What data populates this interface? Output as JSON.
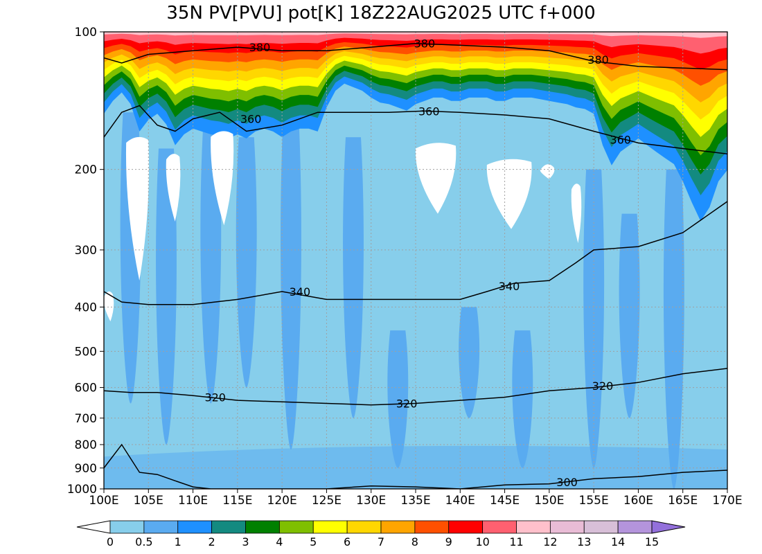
{
  "title": "35N PV[PVU] pot[K] 18Z22AUG2025 UTC f+000",
  "chart_data": {
    "type": "heatmap",
    "title": "35N PV[PVU] pot[K] 18Z22AUG2025 UTC f+000",
    "x_axis": {
      "range": [
        100,
        170
      ],
      "ticks": [
        100,
        105,
        110,
        115,
        120,
        125,
        130,
        135,
        140,
        145,
        150,
        155,
        160,
        165,
        170
      ],
      "tick_labels": [
        "100E",
        "105E",
        "110E",
        "115E",
        "120E",
        "125E",
        "130E",
        "135E",
        "140E",
        "145E",
        "150E",
        "155E",
        "160E",
        "165E",
        "170E"
      ]
    },
    "y_axis": {
      "scale": "log",
      "inverted": true,
      "range": [
        1000,
        100
      ],
      "ticks": [
        100,
        200,
        300,
        400,
        500,
        600,
        700,
        800,
        900,
        1000
      ],
      "tick_labels": [
        "100",
        "200",
        "300",
        "400",
        "500",
        "600",
        "700",
        "800",
        "900",
        "1000"
      ]
    },
    "grid": true,
    "colorbar": {
      "levels": [
        0,
        0.5,
        1,
        2,
        3,
        4,
        5,
        6,
        7,
        8,
        9,
        10,
        11,
        12,
        13,
        14,
        15
      ],
      "level_labels": [
        "0",
        "0.5",
        "1",
        "2",
        "3",
        "4",
        "5",
        "6",
        "7",
        "8",
        "9",
        "10",
        "11",
        "12",
        "13",
        "14",
        "15"
      ],
      "colors": [
        "#ffffff",
        "#87ceeb",
        "#5aabf0",
        "#1e90ff",
        "#138a80",
        "#008000",
        "#7fbf00",
        "#ffff00",
        "#ffd700",
        "#ffa500",
        "#ff5000",
        "#ff0000",
        "#ff6070",
        "#ffc0cb",
        "#e9bcd6",
        "#d8bfd8",
        "#b494dc",
        "#9370db"
      ]
    },
    "pv_field": {
      "lon": [
        100,
        101,
        102,
        103,
        104,
        105,
        106,
        107,
        108,
        109,
        110,
        111,
        112,
        113,
        114,
        115,
        116,
        117,
        118,
        119,
        120,
        121,
        122,
        123,
        124,
        125,
        126,
        127,
        128,
        129,
        130,
        131,
        132,
        133,
        134,
        135,
        136,
        137,
        138,
        139,
        140,
        141,
        142,
        143,
        144,
        145,
        146,
        147,
        148,
        149,
        150,
        151,
        152,
        153,
        154,
        155,
        156,
        157,
        158,
        159,
        160,
        161,
        162,
        163,
        164,
        165,
        166,
        167,
        168,
        169,
        170
      ],
      "tropopause_pressure_hPa": [
        128,
        120,
        115,
        122,
        140,
        132,
        128,
        135,
        150,
        142,
        138,
        140,
        142,
        143,
        145,
        142,
        145,
        140,
        138,
        140,
        144,
        140,
        138,
        138,
        140,
        124,
        114,
        110,
        112,
        114,
        118,
        121,
        122,
        124,
        126,
        122,
        120,
        118,
        118,
        120,
        120,
        118,
        118,
        118,
        120,
        120,
        118,
        118,
        118,
        119,
        120,
        121,
        122,
        124,
        125,
        128,
        150,
        166,
        155,
        150,
        145,
        150,
        155,
        160,
        165,
        180,
        200,
        220,
        205,
        180,
        170
      ],
      "colored_levels": [
        {
          "level": 0.5,
          "label": "0.5"
        },
        {
          "level": 1,
          "label": "1"
        },
        {
          "level": 2,
          "label": "2"
        },
        {
          "level": 3,
          "label": "3"
        },
        {
          "level": 4,
          "label": "4"
        },
        {
          "level": 5,
          "label": "5"
        },
        {
          "level": 6,
          "label": "6"
        },
        {
          "level": 7,
          "label": "7"
        },
        {
          "level": 8,
          "label": "8"
        },
        {
          "level": 9,
          "label": "9"
        },
        {
          "level": 10,
          "label": "10"
        },
        {
          "level": 11,
          "label": "11"
        }
      ],
      "low_pv_areas": [
        {
          "lon_min": 100,
          "lon_max": 101,
          "p_min": 370,
          "p_max": 430,
          "pv": "0"
        },
        {
          "lon_min": 102.5,
          "lon_max": 105,
          "p_min": 170,
          "p_max": 350,
          "pv": "0"
        },
        {
          "lon_min": 107,
          "lon_max": 108.5,
          "p_min": 185,
          "p_max": 260,
          "pv": "0"
        },
        {
          "lon_min": 112,
          "lon_max": 114.5,
          "p_min": 165,
          "p_max": 265,
          "pv": "0"
        },
        {
          "lon_min": 135,
          "lon_max": 139.5,
          "p_min": 175,
          "p_max": 250,
          "pv": "0"
        },
        {
          "lon_min": 143,
          "lon_max": 148,
          "p_min": 190,
          "p_max": 270,
          "pv": "0"
        },
        {
          "lon_min": 149,
          "lon_max": 150.5,
          "p_min": 195,
          "p_max": 210,
          "pv": "0"
        },
        {
          "lon_min": 152.5,
          "lon_max": 153.5,
          "p_min": 215,
          "p_max": 290,
          "pv": "0"
        }
      ],
      "moderate_pv_streaks": [
        {
          "lon": 103,
          "p_top": 150,
          "p_bottom": 650,
          "pv": "0.5"
        },
        {
          "lon": 107,
          "p_top": 180,
          "p_bottom": 800,
          "pv": "0.5"
        },
        {
          "lon": 112,
          "p_top": 160,
          "p_bottom": 650,
          "pv": "0.5"
        },
        {
          "lon": 116,
          "p_top": 170,
          "p_bottom": 600,
          "pv": "0.5"
        },
        {
          "lon": 121,
          "p_top": 150,
          "p_bottom": 820,
          "pv": "0.5"
        },
        {
          "lon": 128,
          "p_top": 170,
          "p_bottom": 700,
          "pv": "0.5"
        },
        {
          "lon": 133,
          "p_top": 450,
          "p_bottom": 900,
          "pv": "0.5"
        },
        {
          "lon": 141,
          "p_top": 400,
          "p_bottom": 700,
          "pv": "0.5"
        },
        {
          "lon": 147,
          "p_top": 450,
          "p_bottom": 900,
          "pv": "0.5"
        },
        {
          "lon": 155,
          "p_top": 200,
          "p_bottom": 900,
          "pv": "0.5"
        },
        {
          "lon": 159,
          "p_top": 250,
          "p_bottom": 700,
          "pv": "0.5"
        },
        {
          "lon": 164,
          "p_top": 200,
          "p_bottom": 1000,
          "pv": "0.5"
        }
      ]
    },
    "theta_contours": [
      {
        "label": "300",
        "lon": [
          100,
          102,
          104,
          106,
          108,
          110,
          112,
          114,
          116,
          118,
          120,
          125,
          130,
          135,
          140,
          145,
          150,
          155,
          160,
          165,
          170
        ],
        "p": [
          900,
          800,
          920,
          930,
          960,
          990,
          1000,
          1000,
          1000,
          1000,
          1000,
          1000,
          985,
          990,
          1000,
          980,
          975,
          950,
          940,
          920,
          910
        ],
        "label_positions": [
          {
            "lon": 152,
            "p": 965
          }
        ]
      },
      {
        "label": "320",
        "lon": [
          100,
          103,
          106,
          110,
          115,
          120,
          125,
          130,
          135,
          140,
          145,
          150,
          155,
          160,
          165,
          170
        ],
        "p": [
          610,
          615,
          615,
          625,
          640,
          645,
          650,
          655,
          650,
          640,
          630,
          610,
          600,
          585,
          560,
          545
        ],
        "label_positions": [
          {
            "lon": 112.5,
            "p": 630
          },
          {
            "lon": 134,
            "p": 650
          },
          {
            "lon": 156,
            "p": 595
          }
        ]
      },
      {
        "label": "340",
        "lon": [
          100,
          102,
          105,
          110,
          115,
          120,
          125,
          130,
          135,
          140,
          143,
          146,
          150,
          153,
          155,
          160,
          165,
          170
        ],
        "p": [
          370,
          390,
          395,
          395,
          385,
          370,
          385,
          385,
          385,
          385,
          370,
          355,
          350,
          320,
          300,
          295,
          275,
          235
        ],
        "label_positions": [
          {
            "lon": 122,
            "p": 370
          },
          {
            "lon": 145.5,
            "p": 360
          }
        ]
      },
      {
        "label": "360",
        "lon": [
          100,
          102,
          104,
          106,
          108,
          110,
          113,
          116,
          120,
          124,
          128,
          132,
          136,
          140,
          145,
          150,
          155,
          160,
          165,
          170
        ],
        "p": [
          170,
          150,
          145,
          160,
          165,
          155,
          150,
          165,
          160,
          150,
          150,
          150,
          149,
          150,
          152,
          155,
          165,
          175,
          180,
          185
        ],
        "label_positions": [
          {
            "lon": 116.5,
            "p": 155
          },
          {
            "lon": 136.5,
            "p": 149
          },
          {
            "lon": 158,
            "p": 172
          }
        ]
      },
      {
        "label": "380",
        "lon": [
          100,
          102,
          105,
          110,
          115,
          120,
          125,
          130,
          135,
          140,
          145,
          150,
          155,
          160,
          165,
          170
        ],
        "p": [
          114,
          117,
          112,
          110,
          108,
          110,
          110,
          108,
          106,
          107,
          108,
          110,
          116,
          119,
          120,
          121
        ],
        "label_positions": [
          {
            "lon": 117.5,
            "p": 108
          },
          {
            "lon": 136,
            "p": 106
          },
          {
            "lon": 155.5,
            "p": 115
          }
        ]
      }
    ]
  }
}
